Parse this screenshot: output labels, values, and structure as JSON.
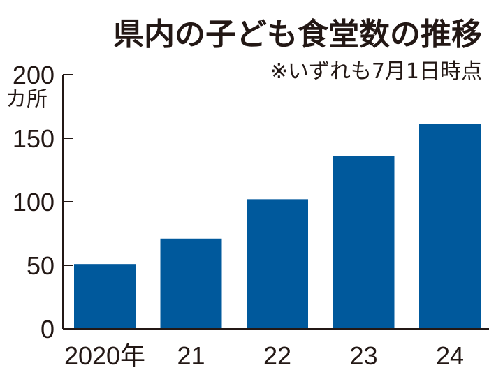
{
  "chart_data": {
    "type": "bar",
    "title": "県内の子ども食堂数の推移",
    "subtitle": "※いずれも7月1日時点",
    "ylabel": "カ所",
    "ylim": [
      0,
      200
    ],
    "yticks": [
      "0",
      "50",
      "100",
      "150",
      "200"
    ],
    "categories": [
      "2020年",
      "21",
      "22",
      "23",
      "24"
    ],
    "values": [
      51,
      71,
      102,
      136,
      161
    ],
    "bar_color": "#00599c",
    "grid": false
  }
}
